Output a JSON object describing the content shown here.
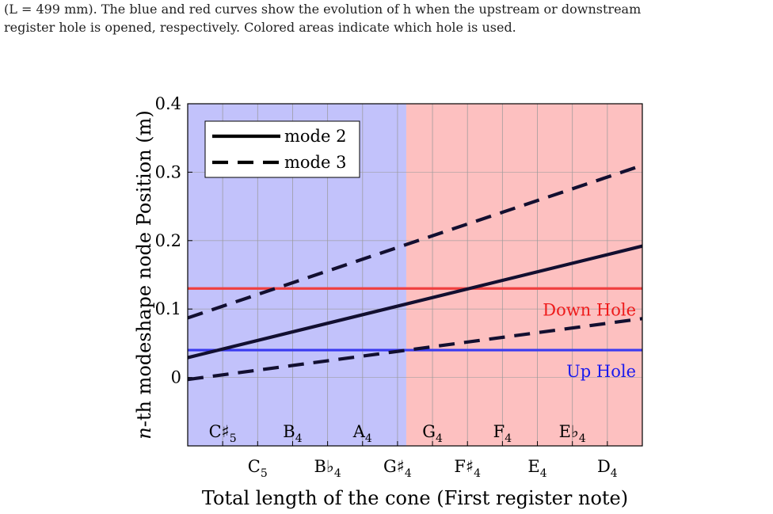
{
  "caption": {
    "line1": "(L = 499 mm). The blue and red curves show the evolution of h when the upstream or downstream",
    "line2": "register hole is opened, respectively. Colored areas indicate which hole is used."
  },
  "colors": {
    "up_region": "#c2c2fb",
    "down_region": "#fdc0c0",
    "up_line": "#3a3af0",
    "down_line": "#f04040",
    "up_text": "#1a1aee",
    "down_text": "#ee1a1a",
    "curve": "#120f30",
    "grid": "#9a9a9a"
  },
  "chart_data": {
    "type": "line",
    "ylabel": "n-th modeshape node Position (m)",
    "xlabel": "Total length of the cone (First register note)",
    "ylim": [
      -0.1,
      0.4
    ],
    "yticks": [
      0,
      0.1,
      0.2,
      0.3,
      0.4
    ],
    "ytick_labels": [
      "0",
      "0.1",
      "0.2",
      "0.3",
      "0.4"
    ],
    "x_notes": [
      {
        "base": "C",
        "acc": "♯",
        "oct": "5",
        "row": "inner"
      },
      {
        "base": "C",
        "acc": "",
        "oct": "5",
        "row": "outer"
      },
      {
        "base": "B",
        "acc": "",
        "oct": "4",
        "row": "inner"
      },
      {
        "base": "B",
        "acc": "♭",
        "oct": "4",
        "row": "outer"
      },
      {
        "base": "A",
        "acc": "",
        "oct": "4",
        "row": "inner"
      },
      {
        "base": "G",
        "acc": "♯",
        "oct": "4",
        "row": "outer"
      },
      {
        "base": "G",
        "acc": "",
        "oct": "4",
        "row": "inner"
      },
      {
        "base": "F",
        "acc": "♯",
        "oct": "4",
        "row": "outer"
      },
      {
        "base": "F",
        "acc": "",
        "oct": "4",
        "row": "inner"
      },
      {
        "base": "E",
        "acc": "",
        "oct": "4",
        "row": "outer"
      },
      {
        "base": "E",
        "acc": "♭",
        "oct": "4",
        "row": "inner"
      },
      {
        "base": "D",
        "acc": "",
        "oct": "4",
        "row": "outer"
      }
    ],
    "region_split_note_index": 5.25,
    "hole_lines": [
      {
        "name": "Down Hole",
        "y": 0.13
      },
      {
        "name": "Up Hole",
        "y": 0.04
      }
    ],
    "series": [
      {
        "name": "mode 2",
        "style": "solid",
        "x": [
          -1.0,
          12.0
        ],
        "y": [
          0.029,
          0.192
        ]
      },
      {
        "name": "mode 3",
        "style": "dashed",
        "x": [
          -1.0,
          12.0
        ],
        "y": [
          0.087,
          0.31
        ]
      },
      {
        "name": "",
        "style": "dashed",
        "x": [
          -1.0,
          12.0
        ],
        "y": [
          -0.003,
          0.086
        ]
      }
    ],
    "legend": {
      "position": "top-left",
      "entries": [
        "mode 2",
        "mode 3"
      ]
    },
    "grid": true
  }
}
